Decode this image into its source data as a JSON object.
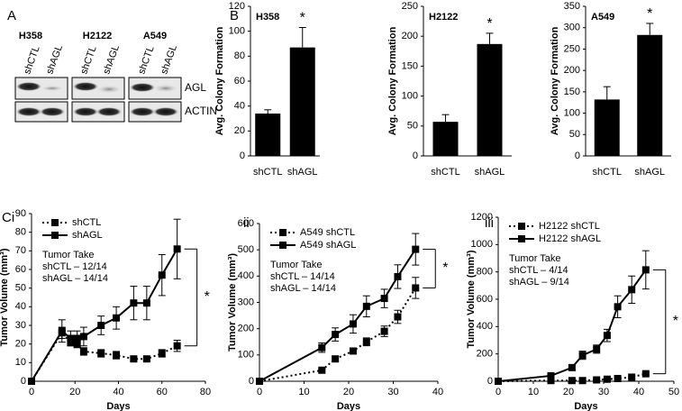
{
  "blot": {
    "panel_label": "A",
    "cell_lines": [
      "H358",
      "H2122",
      "A549"
    ],
    "lanes": [
      "shCTL",
      "shAGL"
    ],
    "proteins": [
      "AGL",
      "ACTIN"
    ]
  },
  "chart_data": [
    {
      "type": "bar",
      "panel_label": "B",
      "title": "H358",
      "y_label": "Avg. Colony Formation",
      "categories": [
        "shCTL",
        "shAGL"
      ],
      "values": [
        34,
        87
      ],
      "errors": [
        3,
        16
      ],
      "significance": "*",
      "color": "#000000",
      "ylim": [
        0,
        120
      ],
      "yticks": [
        0,
        20,
        40,
        60,
        80,
        100,
        120
      ]
    },
    {
      "type": "bar",
      "title": "H2122",
      "y_label": "Avg. Colony Formation",
      "categories": [
        "shCTL",
        "shAGL"
      ],
      "values": [
        57,
        187
      ],
      "errors": [
        12,
        18
      ],
      "significance": "*",
      "color": "#000000",
      "ylim": [
        0,
        250
      ],
      "yticks": [
        0,
        50,
        100,
        150,
        200,
        250
      ]
    },
    {
      "type": "bar",
      "title": "A549",
      "y_label": "Avg. Colony Formation",
      "categories": [
        "shCTL",
        "shAGL"
      ],
      "values": [
        132,
        283
      ],
      "errors": [
        30,
        27
      ],
      "significance": "*",
      "color": "#000000",
      "ylim": [
        0,
        350
      ],
      "yticks": [
        0,
        50,
        100,
        150,
        200,
        250,
        300,
        350
      ]
    },
    {
      "type": "line",
      "panel_label": "Ci",
      "y_label": "Tumor Volume (mm³)",
      "x_label": "Days",
      "annotations": [
        "Tumor Take",
        "shCTL – 12/14",
        "shAGL – 14/14"
      ],
      "significance": "*",
      "xlim": [
        0,
        80
      ],
      "xticks": [
        0,
        20,
        40,
        60,
        80
      ],
      "ylim": [
        0,
        90
      ],
      "yticks": [
        0,
        10,
        20,
        30,
        40,
        50,
        60,
        70,
        80,
        90
      ],
      "series": [
        {
          "name": "shCTL",
          "color": "#000000",
          "dash": "dotted",
          "x": [
            0,
            14,
            18,
            21,
            24,
            32,
            39,
            47,
            53,
            60,
            67
          ],
          "values": [
            0,
            26,
            21,
            20,
            16,
            15,
            14,
            12,
            12,
            15,
            19
          ],
          "errors": [
            0,
            3,
            2,
            2,
            2,
            2,
            2,
            1,
            1,
            2,
            3
          ]
        },
        {
          "name": "shAGL",
          "color": "#000000",
          "dash": "solid",
          "x": [
            0,
            14,
            18,
            21,
            24,
            32,
            39,
            47,
            53,
            60,
            67
          ],
          "values": [
            0,
            27,
            23,
            23,
            24,
            30,
            34,
            42,
            42,
            57,
            71
          ],
          "errors": [
            0,
            6,
            4,
            4,
            5,
            5,
            6,
            9,
            9,
            11,
            16
          ]
        }
      ]
    },
    {
      "type": "line",
      "panel_label": "ii",
      "y_label": "Tumor Volume (mm³)",
      "x_label": "Days",
      "annotations": [
        "Tumor Take",
        "shCTL – 14/14",
        "shAGL – 14/14"
      ],
      "significance": "*",
      "xlim": [
        0,
        40
      ],
      "xticks": [
        0,
        10,
        20,
        30,
        40
      ],
      "ylim": [
        0,
        600
      ],
      "yticks": [
        0,
        100,
        200,
        300,
        400,
        500,
        600
      ],
      "series": [
        {
          "name": "A549 shCTL",
          "color": "#000000",
          "dash": "dotted",
          "x": [
            0,
            14,
            17,
            21,
            24,
            28,
            31,
            35
          ],
          "values": [
            0,
            42,
            85,
            115,
            150,
            190,
            245,
            355
          ],
          "errors": [
            0,
            5,
            8,
            10,
            15,
            20,
            25,
            40
          ]
        },
        {
          "name": "A549 shAGL",
          "color": "#000000",
          "dash": "solid",
          "x": [
            0,
            14,
            17,
            21,
            24,
            28,
            31,
            35
          ],
          "values": [
            0,
            128,
            178,
            218,
            285,
            315,
            398,
            502
          ],
          "errors": [
            0,
            18,
            25,
            35,
            40,
            35,
            45,
            60
          ]
        }
      ]
    },
    {
      "type": "line",
      "panel_label": "iii",
      "y_label": "Tumor Volume (mm³)",
      "x_label": "Days",
      "annotations": [
        "Tumor Take",
        "shCTL – 4/14",
        "shAGL – 9/14"
      ],
      "significance": "*",
      "xlim": [
        0,
        50
      ],
      "xticks": [
        0,
        10,
        20,
        30,
        40,
        50
      ],
      "ylim": [
        0,
        1200
      ],
      "yticks": [
        0,
        200,
        400,
        600,
        800,
        1000,
        1200
      ],
      "series": [
        {
          "name": "H2122 shCTL",
          "color": "#000000",
          "dash": "dotted",
          "x": [
            0,
            15,
            21,
            24,
            28,
            31,
            34,
            38,
            42
          ],
          "values": [
            0,
            5,
            5,
            5,
            10,
            15,
            20,
            30,
            55
          ],
          "errors": [
            0,
            2,
            2,
            2,
            3,
            5,
            5,
            8,
            10
          ]
        },
        {
          "name": "H2122 shAGL",
          "color": "#000000",
          "dash": "solid",
          "x": [
            0,
            15,
            21,
            24,
            28,
            31,
            34,
            38,
            42
          ],
          "values": [
            0,
            40,
            100,
            190,
            235,
            335,
            545,
            670,
            815
          ],
          "errors": [
            0,
            10,
            15,
            30,
            30,
            45,
            80,
            100,
            140
          ]
        }
      ]
    }
  ]
}
